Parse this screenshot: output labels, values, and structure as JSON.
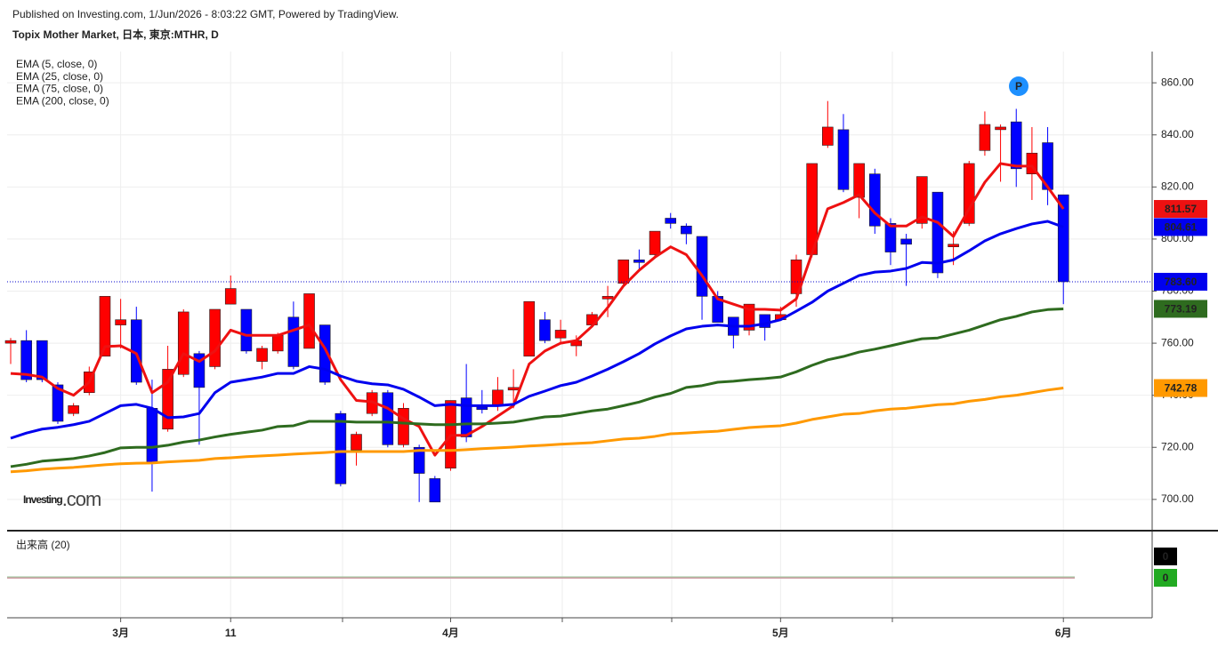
{
  "chart_data": {
    "type": "candlestick",
    "published": "Published on Investing.com, 1/Jun/2026 - 8:03:22 GMT, Powered by TradingView.",
    "title": "Topix Mother Market, 日本, 東京:MTHR, D",
    "watermark": [
      "Investing",
      ".com"
    ],
    "marker_label": "P",
    "up_color": "#ff0000",
    "down_color": "#0000ff",
    "grid": true,
    "categories": [
      null,
      null,
      null,
      null,
      null,
      null,
      null,
      "3月",
      null,
      null,
      null,
      null,
      null,
      null,
      "11",
      null,
      null,
      null,
      null,
      null,
      null,
      null,
      null,
      null,
      null,
      null,
      null,
      null,
      "4月",
      null,
      null,
      null,
      null,
      null,
      null,
      null,
      null,
      null,
      null,
      null,
      null,
      null,
      null,
      null,
      null,
      null,
      null,
      null,
      null,
      "5月",
      null,
      null,
      null,
      null,
      null,
      null,
      null,
      null,
      null,
      null,
      null,
      null,
      null,
      null,
      null,
      null,
      null,
      "6月"
    ],
    "ylim": [
      688,
      872
    ],
    "yticks": [
      {
        "value": 700,
        "label": "700.00"
      },
      {
        "value": 720,
        "label": "720.00"
      },
      {
        "value": 740,
        "label": "740.00"
      },
      {
        "value": 760,
        "label": "760.00"
      },
      {
        "value": 780,
        "label": "780.00"
      },
      {
        "value": 800,
        "label": "800.00"
      },
      {
        "value": 820,
        "label": "820.00"
      },
      {
        "value": 840,
        "label": "840.00"
      },
      {
        "value": 860,
        "label": "860.00"
      }
    ],
    "ohlc": {
      "open": [
        760,
        761,
        761,
        744,
        733,
        741,
        755,
        767,
        769,
        735,
        727,
        748,
        756,
        751,
        775,
        773,
        753,
        757,
        770,
        758,
        767,
        733,
        719,
        733,
        741,
        721,
        720,
        708,
        712,
        739,
        735.5,
        736,
        742,
        755,
        769,
        762,
        759,
        767,
        777,
        783,
        792,
        794,
        808,
        805,
        801,
        778,
        770,
        765,
        771,
        769,
        779,
        794,
        836,
        842,
        816,
        825,
        806,
        800,
        806,
        818,
        797,
        806,
        834,
        842,
        845,
        825,
        837,
        817
      ],
      "high": [
        762,
        765,
        761,
        745,
        737,
        751,
        778,
        777,
        774,
        746,
        759,
        773,
        757,
        773,
        786,
        773,
        759,
        764,
        776,
        779,
        767,
        734,
        726,
        742,
        742,
        737,
        721,
        709,
        738,
        752,
        742,
        747,
        750,
        776,
        772,
        769,
        763,
        772,
        782,
        792,
        796,
        803,
        810,
        806,
        801,
        780,
        770,
        775,
        771,
        774,
        794,
        829,
        853,
        848,
        829,
        827,
        808,
        802,
        824,
        818,
        803,
        830,
        849,
        844,
        850,
        843,
        843,
        817
      ],
      "low": [
        752,
        745,
        745,
        729,
        732,
        740,
        755,
        758,
        744,
        703,
        726,
        747,
        721,
        750,
        775,
        756,
        750,
        756,
        750,
        758,
        744,
        705,
        713,
        732,
        720,
        720,
        699,
        699,
        711,
        722,
        733,
        734,
        735,
        755,
        760,
        760,
        755,
        766,
        770,
        782,
        788,
        793,
        804,
        798,
        769,
        768,
        758,
        763,
        761,
        769,
        774,
        793,
        835,
        818,
        808,
        802,
        790,
        782,
        804,
        785,
        790,
        805,
        832,
        822,
        820,
        815,
        813,
        775
      ],
      "close": [
        761,
        746,
        746,
        730,
        736,
        749,
        778,
        769,
        745,
        714,
        750,
        772,
        743,
        773,
        781,
        757,
        758,
        763,
        751,
        779,
        745,
        706,
        725,
        741,
        721,
        735,
        710,
        699,
        738,
        724,
        734.5,
        742,
        743,
        776,
        761,
        765,
        761,
        771,
        778,
        792,
        791,
        803,
        806,
        802,
        778,
        768,
        763,
        775,
        766,
        771,
        792,
        829,
        843,
        819,
        829,
        805,
        795,
        798,
        824,
        787,
        798,
        829,
        844,
        843,
        827,
        833,
        819,
        783.6
      ]
    },
    "last_close_label": "783.60",
    "series": [
      {
        "name": "EMA (5, close, 0)",
        "color": "#ee1111",
        "values": [
          748.4,
          748,
          747,
          742.6,
          740,
          745,
          758.7,
          759,
          756,
          741,
          745,
          756,
          753,
          757,
          765,
          763,
          763,
          763,
          765,
          767,
          758,
          746,
          738,
          737.5,
          735,
          731,
          728,
          717,
          724.6,
          724.6,
          728,
          732,
          736,
          752,
          757,
          760,
          761,
          766.5,
          773.7,
          782,
          788,
          793,
          797,
          794,
          786,
          777,
          775,
          773,
          773,
          772.7,
          777,
          794.5,
          811.6,
          814,
          817,
          810,
          805,
          805,
          808.5,
          806.4,
          801,
          811.6,
          821.8,
          829,
          828,
          828,
          820,
          811.57
        ]
      },
      {
        "name": "EMA (25, close, 0)",
        "color": "#0000ee",
        "values": [
          723.5,
          725.5,
          727,
          727.7,
          728.7,
          730,
          733,
          736,
          736.5,
          735,
          731.4,
          731.7,
          733,
          741,
          745,
          746,
          747,
          748.4,
          748.4,
          751,
          750,
          747.4,
          745.4,
          744.4,
          744,
          742.3,
          739.3,
          736,
          736.5,
          736,
          736,
          736,
          736.5,
          739.6,
          741.6,
          743.7,
          745,
          747.4,
          750,
          752.9,
          756,
          759.7,
          762.8,
          765.5,
          766.5,
          767,
          766.5,
          766.5,
          767.5,
          769,
          772.3,
          775.7,
          780,
          783,
          786,
          787.3,
          787.7,
          788.7,
          791,
          790.7,
          792,
          795.5,
          799.3,
          802,
          804,
          805.8,
          806.8,
          804.61
        ]
      },
      {
        "name": "EMA (75, close, 0)",
        "color": "#2e6b1f",
        "values": [
          712.6,
          713.5,
          714.7,
          715.2,
          715.7,
          716.7,
          718,
          719.8,
          720,
          720,
          720.8,
          722,
          722.8,
          724,
          725,
          725.8,
          726.6,
          728,
          728.3,
          730,
          730,
          730,
          729.7,
          729.7,
          729.7,
          729.3,
          729,
          728.7,
          728.7,
          729,
          729,
          729.3,
          729.7,
          730.7,
          731.7,
          732,
          733,
          734,
          734.7,
          736,
          737.4,
          739.3,
          740.7,
          743,
          743.7,
          745,
          745.4,
          746,
          746.4,
          747,
          749,
          751.5,
          753.6,
          754.9,
          756.6,
          757.7,
          759,
          760.4,
          761.7,
          762,
          763.5,
          765,
          767,
          769,
          770.3,
          772,
          772.9,
          773.19
        ]
      },
      {
        "name": "EMA (200, close, 0)",
        "color": "#ff9900",
        "values": [
          710.6,
          711,
          711.6,
          712,
          712.3,
          712.8,
          713.3,
          713.7,
          713.9,
          714,
          714.4,
          714.7,
          715,
          715.7,
          716,
          716.4,
          716.7,
          717,
          717.4,
          717.7,
          718,
          718.4,
          718.4,
          718.4,
          718.4,
          718.4,
          718.8,
          718.8,
          718.8,
          719.1,
          719.5,
          719.8,
          720.1,
          720.5,
          720.8,
          721.2,
          721.5,
          721.8,
          722.5,
          723.2,
          723.5,
          724.2,
          725.2,
          725.5,
          725.9,
          726.2,
          726.9,
          727.6,
          728,
          728.3,
          729.3,
          730.7,
          731.7,
          732.7,
          733,
          734,
          734.7,
          735,
          735.7,
          736.4,
          736.7,
          737.7,
          738.4,
          739.4,
          740,
          741,
          742,
          742.78
        ]
      }
    ],
    "volume": {
      "name": "出来高 (20)",
      "last_volume": 0,
      "average": 0
    }
  }
}
